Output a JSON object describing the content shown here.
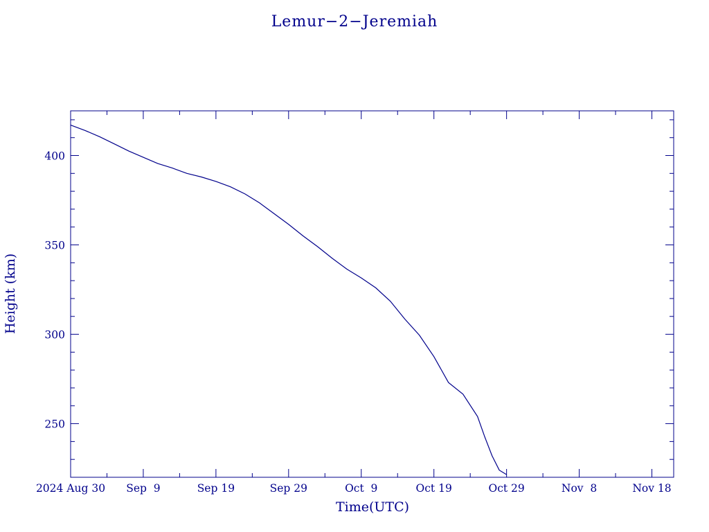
{
  "chart_data": {
    "type": "line",
    "title": "Lemur−2−Jeremiah",
    "xlabel": "Time(UTC)",
    "ylabel": "Height (km)",
    "x_ticks": [
      {
        "date": "2024-08-30",
        "label": "2024 Aug 30"
      },
      {
        "date": "2024-09-09",
        "label": "Sep  9"
      },
      {
        "date": "2024-09-19",
        "label": "Sep 19"
      },
      {
        "date": "2024-09-29",
        "label": "Sep 29"
      },
      {
        "date": "2024-10-09",
        "label": "Oct  9"
      },
      {
        "date": "2024-10-19",
        "label": "Oct 19"
      },
      {
        "date": "2024-10-29",
        "label": "Oct 29"
      },
      {
        "date": "2024-11-08",
        "label": "Nov  8"
      },
      {
        "date": "2024-11-18",
        "label": "Nov 18"
      }
    ],
    "y_ticks": [
      250,
      300,
      350,
      400
    ],
    "xlim": [
      "2024-08-30",
      "2024-11-21"
    ],
    "ylim": [
      220,
      425
    ],
    "grid": false,
    "color": "#00008b",
    "series": [
      {
        "x": [
          "2024-08-30",
          "2024-09-01",
          "2024-09-03",
          "2024-09-05",
          "2024-09-07",
          "2024-09-09",
          "2024-09-11",
          "2024-09-13",
          "2024-09-15",
          "2024-09-17",
          "2024-09-19",
          "2024-09-21",
          "2024-09-23",
          "2024-09-25",
          "2024-09-27",
          "2024-09-29",
          "2024-10-01",
          "2024-10-03",
          "2024-10-05",
          "2024-10-07",
          "2024-10-09",
          "2024-10-11",
          "2024-10-13",
          "2024-10-15",
          "2024-10-17",
          "2024-10-19",
          "2024-10-21",
          "2024-10-23",
          "2024-10-25",
          "2024-10-26",
          "2024-10-27",
          "2024-10-28",
          "2024-10-29"
        ],
        "y": [
          417,
          414,
          410.5,
          406.5,
          402.5,
          399,
          395.5,
          393,
          390,
          388,
          385.5,
          382.5,
          378.5,
          373.5,
          367.5,
          361.5,
          355,
          349,
          342.5,
          336.5,
          331.5,
          326,
          318.5,
          308.5,
          299.5,
          287.5,
          273,
          266.5,
          254,
          242.5,
          232,
          224,
          221.5
        ]
      }
    ]
  }
}
